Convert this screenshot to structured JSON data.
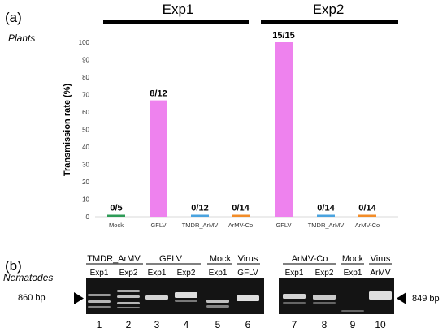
{
  "panel_a": {
    "label": "(a)",
    "subtitle": "Plants",
    "experiments": [
      "Exp1",
      "Exp2"
    ]
  },
  "panel_b": {
    "label": "(b)",
    "subtitle": "Nematodes",
    "marker_left": "860 bp",
    "marker_right": "849 bp",
    "groups_left": [
      "TMDR_ArMV",
      "GFLV",
      "Mock",
      "Virus"
    ],
    "groups_right": [
      "ArMV-Co",
      "Mock",
      "Virus"
    ],
    "lane_labels": [
      "Exp1",
      "Exp2",
      "Exp1",
      "Exp2",
      "Exp1",
      "GFLV",
      "Exp1",
      "Exp2",
      "Exp1",
      "ArMV"
    ],
    "lane_numbers": [
      "1",
      "2",
      "3",
      "4",
      "5",
      "6",
      "7",
      "8",
      "9",
      "10"
    ]
  },
  "colors": {
    "gflv": "#ee82ee",
    "mock": "#2e9b57",
    "tmdr": "#4aa3df",
    "armv_co": "#f28c28",
    "gel_bg": "#141414",
    "band": "#dedede"
  },
  "chart_data": {
    "type": "bar",
    "title": "",
    "xlabel": "",
    "ylabel": "Transmission rate (%)",
    "ylim": [
      0,
      100
    ],
    "yticks": [
      0,
      10,
      20,
      30,
      40,
      50,
      60,
      70,
      80,
      90,
      100
    ],
    "grid": false,
    "categories": [
      "Mock",
      "GFLV",
      "TMDR_ArMV",
      "ArMV-Co",
      "GFLV",
      "TMDR_ArMV",
      "ArMV-Co"
    ],
    "group": [
      "Exp1",
      "Exp1",
      "Exp1",
      "Exp1",
      "Exp2",
      "Exp2",
      "Exp2"
    ],
    "values": [
      0,
      66.7,
      0,
      0,
      100,
      0,
      0
    ],
    "data_labels": [
      "0/5",
      "8/12",
      "0/12",
      "0/14",
      "15/15",
      "0/14",
      "0/14"
    ],
    "bar_colors": [
      "#2e9b57",
      "#ee82ee",
      "#4aa3df",
      "#f28c28",
      "#ee82ee",
      "#4aa3df",
      "#f28c28"
    ]
  }
}
